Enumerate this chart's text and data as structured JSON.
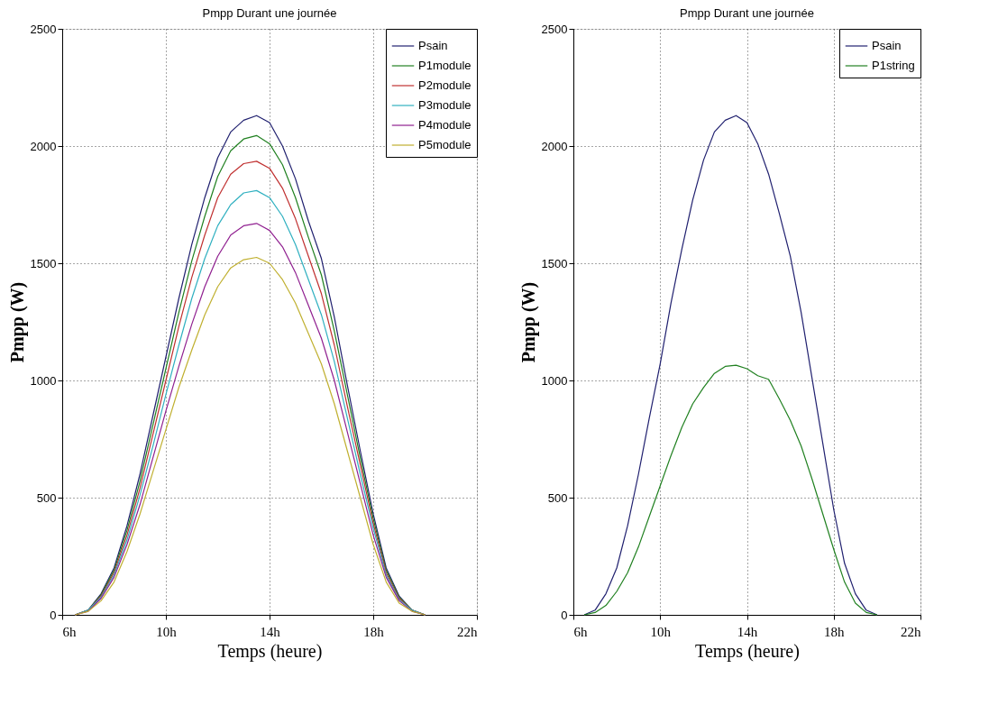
{
  "chart_data": [
    {
      "type": "line",
      "title": "Pmpp Durant une journée",
      "xlabel": "Temps (heure)",
      "ylabel": "Pmpp (W)",
      "xlim": [
        6,
        22
      ],
      "ylim": [
        0,
        2500
      ],
      "xticks": [
        {
          "value": 6,
          "label": "6h"
        },
        {
          "value": 10,
          "label": "10h"
        },
        {
          "value": 14,
          "label": "14h"
        },
        {
          "value": 18,
          "label": "18h"
        },
        {
          "value": 22,
          "label": "22h"
        }
      ],
      "yticks": [
        0,
        500,
        1000,
        1500,
        2000,
        2500
      ],
      "grid": true,
      "legend": "top right",
      "line_style": "solid",
      "marker": "none",
      "x": [
        6.5,
        7,
        7.5,
        8,
        8.5,
        9,
        9.5,
        10,
        10.5,
        11,
        11.5,
        12,
        12.5,
        13,
        13.5,
        14,
        14.5,
        15,
        15.5,
        16,
        16.5,
        17,
        17.5,
        18,
        18.5,
        19,
        19.5,
        20
      ],
      "series": [
        {
          "name": "Psain",
          "color": "#20206f",
          "values": [
            0,
            20,
            90,
            200,
            380,
            600,
            850,
            1100,
            1350,
            1580,
            1780,
            1950,
            2060,
            2110,
            2130,
            2100,
            2000,
            1860,
            1680,
            1520,
            1270,
            980,
            700,
            430,
            200,
            80,
            20,
            0
          ]
        },
        {
          "name": "P1module",
          "color": "#208020",
          "values": [
            0,
            20,
            85,
            190,
            360,
            570,
            810,
            1050,
            1290,
            1510,
            1700,
            1870,
            1980,
            2030,
            2045,
            2010,
            1920,
            1780,
            1610,
            1450,
            1210,
            940,
            670,
            410,
            190,
            75,
            20,
            0
          ]
        },
        {
          "name": "P2module",
          "color": "#c03030",
          "values": [
            0,
            20,
            80,
            180,
            340,
            540,
            770,
            1000,
            1230,
            1440,
            1620,
            1780,
            1880,
            1925,
            1935,
            1905,
            1820,
            1690,
            1530,
            1370,
            1150,
            890,
            640,
            390,
            180,
            70,
            20,
            0
          ]
        },
        {
          "name": "P3module",
          "color": "#30b0c0",
          "values": [
            0,
            20,
            75,
            170,
            320,
            510,
            720,
            940,
            1150,
            1350,
            1520,
            1660,
            1750,
            1800,
            1810,
            1780,
            1700,
            1580,
            1430,
            1280,
            1080,
            840,
            600,
            370,
            170,
            65,
            20,
            0
          ]
        },
        {
          "name": "P4module",
          "color": "#902090",
          "values": [
            0,
            15,
            70,
            160,
            300,
            470,
            670,
            870,
            1060,
            1240,
            1400,
            1530,
            1620,
            1660,
            1670,
            1640,
            1570,
            1460,
            1320,
            1180,
            1000,
            780,
            560,
            340,
            160,
            60,
            15,
            0
          ]
        },
        {
          "name": "P5module",
          "color": "#c0b030",
          "values": [
            0,
            15,
            60,
            140,
            270,
            430,
            610,
            790,
            970,
            1130,
            1280,
            1400,
            1480,
            1515,
            1525,
            1500,
            1430,
            1330,
            1200,
            1070,
            900,
            700,
            500,
            300,
            140,
            50,
            15,
            0
          ]
        }
      ]
    },
    {
      "type": "line",
      "title": "Pmpp Durant une journée",
      "xlabel": "Temps (heure)",
      "ylabel": "Pmpp (W)",
      "xlim": [
        6,
        22
      ],
      "ylim": [
        0,
        2500
      ],
      "xticks": [
        {
          "value": 6,
          "label": "6h"
        },
        {
          "value": 10,
          "label": "10h"
        },
        {
          "value": 14,
          "label": "14h"
        },
        {
          "value": 18,
          "label": "18h"
        },
        {
          "value": 22,
          "label": "22h"
        }
      ],
      "yticks": [
        0,
        500,
        1000,
        1500,
        2000,
        2500
      ],
      "grid": true,
      "legend": "top right",
      "line_style": "solid",
      "marker": "none",
      "x": [
        6.5,
        7,
        7.5,
        8,
        8.5,
        9,
        9.5,
        10,
        10.5,
        11,
        11.5,
        12,
        12.5,
        13,
        13.5,
        14,
        14.5,
        15,
        15.5,
        16,
        16.5,
        17,
        17.5,
        18,
        18.5,
        19,
        19.5,
        20
      ],
      "series": [
        {
          "name": "Psain",
          "color": "#20206f",
          "values": [
            0,
            20,
            90,
            200,
            380,
            600,
            840,
            1070,
            1330,
            1560,
            1770,
            1940,
            2060,
            2110,
            2130,
            2100,
            2010,
            1880,
            1710,
            1530,
            1290,
            1010,
            730,
            450,
            220,
            90,
            20,
            0
          ]
        },
        {
          "name": "P1string",
          "color": "#208020",
          "values": [
            0,
            10,
            40,
            100,
            180,
            290,
            420,
            550,
            680,
            800,
            900,
            970,
            1030,
            1060,
            1065,
            1050,
            1020,
            1005,
            920,
            830,
            720,
            580,
            430,
            280,
            140,
            50,
            10,
            0
          ]
        }
      ]
    }
  ]
}
